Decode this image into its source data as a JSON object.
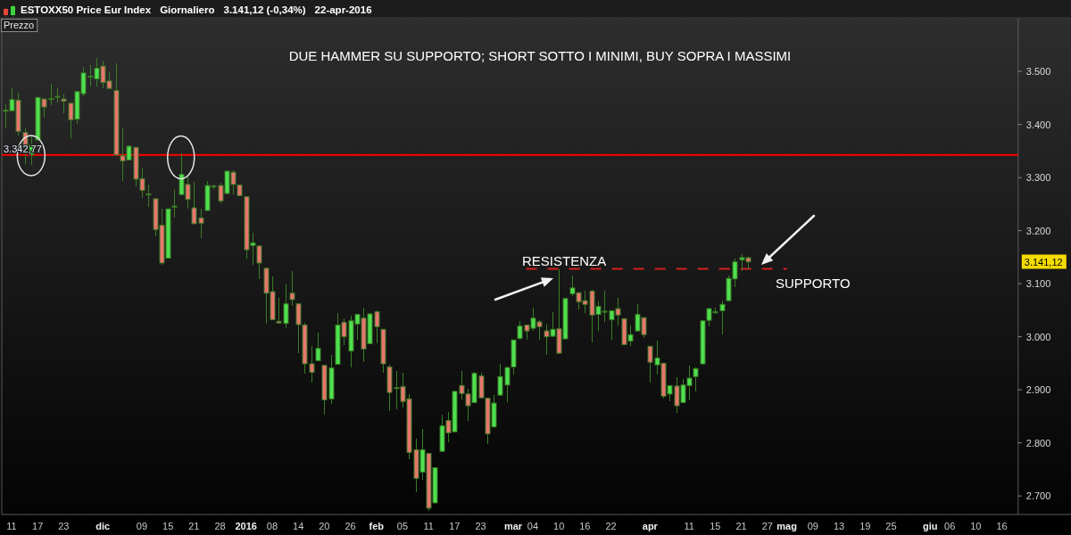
{
  "chart_data": {
    "type": "candlestick",
    "title": "ESTOXX50 Price Eur Index",
    "subtitle": "Giornaliero",
    "ylabel": "Prezzo",
    "annotations": [
      "DUE HAMMER SU SUPPORTO; SHORT SOTTO I MINIMI, BUY SOPRA I MASSIMI",
      "3.141,12 (-0,34%)",
      "22-apr-2016",
      "RESISTENZA",
      "SUPPORTO",
      "3.141,12"
    ],
    "categories": [
      null,
      "11",
      null,
      null,
      null,
      "17",
      null,
      null,
      null,
      "23",
      null,
      null,
      null,
      null,
      null,
      "dic",
      null,
      null,
      null,
      null,
      null,
      "09",
      null,
      null,
      null,
      "15",
      null,
      null,
      null,
      "21",
      null,
      null,
      null,
      "28",
      null,
      null,
      null,
      "2016",
      null,
      null,
      null,
      "08",
      null,
      null,
      null,
      "14",
      null,
      null,
      null,
      "20",
      null,
      null,
      null,
      "26",
      null,
      null,
      null,
      "feb",
      null,
      null,
      null,
      "05",
      null,
      null,
      null,
      "11",
      null,
      null,
      null,
      "17",
      null,
      null,
      null,
      "23",
      null,
      null,
      null,
      null,
      "mar",
      null,
      null,
      "04",
      null,
      null,
      null,
      "10",
      null,
      null,
      null,
      "16",
      null,
      null,
      null,
      "22",
      null,
      null,
      null,
      null,
      null,
      "apr",
      null,
      null,
      null,
      null,
      null,
      "11",
      null,
      null,
      null,
      "15",
      null,
      null,
      null,
      "21",
      null,
      null,
      null,
      "27",
      null,
      null,
      "mag",
      null,
      null,
      null,
      "09",
      null,
      null,
      null,
      "13",
      null,
      null,
      null,
      "19",
      null,
      null,
      null,
      "25",
      null,
      null,
      null,
      null,
      null,
      "giu",
      null,
      null,
      "06",
      null,
      null,
      null,
      "10",
      null,
      null,
      null,
      "16",
      null,
      null
    ],
    "ohlc": [
      [
        3425,
        3438,
        3394,
        3427
      ],
      [
        3426,
        3469,
        3424,
        3447
      ],
      [
        3446,
        3460,
        3380,
        3387
      ],
      [
        3385,
        3392,
        3326,
        3360
      ],
      [
        3343,
        3377,
        3324,
        3361
      ],
      [
        3371,
        3452,
        3369,
        3451
      ],
      [
        3448,
        3449,
        3413,
        3433
      ],
      [
        3449,
        3476,
        3437,
        3448
      ],
      [
        3452,
        3469,
        3441,
        3453
      ],
      [
        3448,
        3458,
        3422,
        3444
      ],
      [
        3440,
        3441,
        3374,
        3409
      ],
      [
        3410,
        3463,
        3401,
        3462
      ],
      [
        3458,
        3508,
        3453,
        3497
      ],
      [
        3490,
        3512,
        3471,
        3491
      ],
      [
        3486,
        3525,
        3471,
        3506
      ],
      [
        3510,
        3520,
        3469,
        3479
      ],
      [
        3482,
        3500,
        3467,
        3468
      ],
      [
        3464,
        3515,
        3340,
        3343
      ],
      [
        3341,
        3394,
        3294,
        3331
      ],
      [
        3333,
        3360,
        3332,
        3359
      ],
      [
        3357,
        3358,
        3283,
        3297
      ],
      [
        3298,
        3317,
        3262,
        3276
      ],
      [
        3268,
        3287,
        3245,
        3269
      ],
      [
        3260,
        3261,
        3189,
        3202
      ],
      [
        3210,
        3242,
        3136,
        3139
      ],
      [
        3148,
        3242,
        3147,
        3241
      ],
      [
        3245,
        3277,
        3225,
        3246
      ],
      [
        3268,
        3345,
        3267,
        3306
      ],
      [
        3287,
        3304,
        3242,
        3259
      ],
      [
        3243,
        3292,
        3212,
        3213
      ],
      [
        3224,
        3242,
        3186,
        3214
      ],
      [
        3238,
        3293,
        3237,
        3285
      ],
      [
        3283,
        3287,
        3279,
        3284
      ],
      [
        3285,
        3290,
        3251,
        3256
      ],
      [
        3270,
        3313,
        3269,
        3312
      ],
      [
        3310,
        3314,
        3268,
        3287
      ],
      [
        3286,
        3287,
        3265,
        3266
      ],
      [
        3264,
        3265,
        3147,
        3164
      ],
      [
        3172,
        3196,
        3135,
        3177
      ],
      [
        3171,
        3173,
        3109,
        3139
      ],
      [
        3129,
        3130,
        3025,
        3082
      ],
      [
        3085,
        3113,
        3031,
        3032
      ],
      [
        3029,
        3073,
        3025,
        3026
      ],
      [
        3025,
        3098,
        3017,
        3062
      ],
      [
        3082,
        3123,
        3059,
        3070
      ],
      [
        3062,
        3063,
        2969,
        3023
      ],
      [
        3022,
        3027,
        2930,
        2949
      ],
      [
        2949,
        2982,
        2913,
        2933
      ],
      [
        2955,
        3008,
        2954,
        2978
      ],
      [
        2946,
        2947,
        2853,
        2881
      ],
      [
        2883,
        2965,
        2873,
        2941
      ],
      [
        2948,
        3045,
        2947,
        3022
      ],
      [
        3027,
        3035,
        2984,
        3000
      ],
      [
        2973,
        3040,
        2943,
        3030
      ],
      [
        3024,
        3043,
        2994,
        3042
      ],
      [
        3035,
        3055,
        2952,
        2977
      ],
      [
        2987,
        3044,
        2986,
        3043
      ],
      [
        3047,
        3050,
        2987,
        3019
      ],
      [
        3014,
        3015,
        2932,
        2949
      ],
      [
        2943,
        2947,
        2860,
        2895
      ],
      [
        2904,
        2935,
        2864,
        2903
      ],
      [
        2906,
        2932,
        2867,
        2878
      ],
      [
        2883,
        2892,
        2769,
        2782
      ],
      [
        2787,
        2807,
        2707,
        2733
      ],
      [
        2745,
        2826,
        2731,
        2787
      ],
      [
        2780,
        2781,
        2672,
        2677
      ],
      [
        2687,
        2754,
        2686,
        2753
      ],
      [
        2784,
        2853,
        2783,
        2832
      ],
      [
        2842,
        2858,
        2801,
        2819
      ],
      [
        2821,
        2898,
        2820,
        2897
      ],
      [
        2908,
        2935,
        2881,
        2893
      ],
      [
        2892,
        2902,
        2842,
        2870
      ],
      [
        2876,
        2934,
        2875,
        2931
      ],
      [
        2926,
        2933,
        2884,
        2885
      ],
      [
        2884,
        2885,
        2798,
        2817
      ],
      [
        2830,
        2890,
        2829,
        2875
      ],
      [
        2890,
        2949,
        2889,
        2925
      ],
      [
        2909,
        2944,
        2876,
        2942
      ],
      [
        2943,
        2995,
        2928,
        2994
      ],
      [
        2997,
        3029,
        2994,
        3020
      ],
      [
        3022,
        3023,
        2995,
        3011
      ],
      [
        3016,
        3055,
        3011,
        3035
      ],
      [
        3028,
        3032,
        2995,
        3019
      ],
      [
        3011,
        3023,
        2966,
        3000
      ],
      [
        3001,
        3047,
        3000,
        3014
      ],
      [
        3015,
        3127,
        2968,
        2969
      ],
      [
        2996,
        3073,
        2995,
        3072
      ],
      [
        3081,
        3115,
        3077,
        3092
      ],
      [
        3083,
        3084,
        3052,
        3066
      ],
      [
        3068,
        3086,
        3044,
        3061
      ],
      [
        3086,
        3089,
        2989,
        3041
      ],
      [
        3042,
        3066,
        3011,
        3057
      ],
      [
        3048,
        3086,
        3028,
        3047
      ],
      [
        3032,
        3050,
        2995,
        3049
      ],
      [
        3053,
        3074,
        3022,
        3041
      ],
      [
        3034,
        3035,
        2984,
        2985
      ],
      [
        2992,
        3022,
        2982,
        3004
      ],
      [
        3011,
        3061,
        3010,
        3042
      ],
      [
        3036,
        3037,
        2998,
        3004
      ],
      [
        2982,
        2983,
        2914,
        2952
      ],
      [
        2947,
        2993,
        2929,
        2960
      ],
      [
        2950,
        2951,
        2884,
        2888
      ],
      [
        2892,
        2909,
        2878,
        2908
      ],
      [
        2907,
        2924,
        2857,
        2870
      ],
      [
        2876,
        2920,
        2875,
        2909
      ],
      [
        2908,
        2946,
        2880,
        2922
      ],
      [
        2925,
        2942,
        2897,
        2940
      ],
      [
        2949,
        3031,
        2948,
        3030
      ],
      [
        3031,
        3055,
        3020,
        3053
      ],
      [
        3046,
        3055,
        3043,
        3047
      ],
      [
        3049,
        3069,
        3004,
        3061
      ],
      [
        3068,
        3116,
        3067,
        3110
      ],
      [
        3109,
        3147,
        3094,
        3141
      ],
      [
        3145,
        3155,
        3124,
        3149
      ],
      [
        3149,
        3151,
        3127,
        3141.12
      ],
      null,
      null,
      null,
      null,
      null,
      null,
      null,
      null,
      null,
      null,
      null,
      null,
      null,
      null,
      null,
      null,
      null,
      null,
      null,
      null,
      null,
      null,
      null,
      null,
      null,
      null,
      null,
      null,
      null,
      null,
      null,
      null,
      null,
      null,
      null,
      null,
      null,
      null,
      null,
      null,
      null
    ],
    "colors": [
      "#4fe04f",
      "#4fe04f",
      "#e8766e",
      "#e8766e",
      "#4fe04f",
      "#4fe04f",
      "#e8766e",
      "#e8766e",
      "#4fe04f",
      "#e8766e",
      "#e8766e",
      "#4fe04f",
      "#4fe04f",
      "#4fe04f",
      "#4fe04f",
      "#e8766e",
      "#e8766e",
      "#e8766e",
      "#e8766e",
      "#4fe04f",
      "#e8766e",
      "#e8766e",
      "#4fe04f",
      "#e8766e",
      "#e8766e",
      "#4fe04f",
      "#4fe04f",
      "#4fe04f",
      "#e8766e",
      "#e8766e",
      "#e8766e",
      "#4fe04f",
      "#4fe04f",
      "#e8766e",
      "#4fe04f",
      "#e8766e",
      "#e8766e",
      "#e8766e",
      "#4fe04f",
      "#e8766e",
      "#e8766e",
      "#e8766e",
      "#e8766e",
      "#4fe04f",
      "#e8766e",
      "#e8766e",
      "#e8766e",
      "#e8766e",
      "#4fe04f",
      "#e8766e",
      "#4fe04f",
      "#4fe04f",
      "#e8766e",
      "#4fe04f",
      "#4fe04f",
      "#e8766e",
      "#4fe04f",
      "#e8766e",
      "#e8766e",
      "#e8766e",
      "#e8766e",
      "#e8766e",
      "#e8766e",
      "#e8766e",
      "#4fe04f",
      "#e8766e",
      "#4fe04f",
      "#4fe04f",
      "#e8766e",
      "#4fe04f",
      "#e8766e",
      "#e8766e",
      "#4fe04f",
      "#e8766e",
      "#e8766e",
      "#4fe04f",
      "#4fe04f",
      "#4fe04f",
      "#4fe04f",
      "#4fe04f",
      "#e8766e",
      "#4fe04f",
      "#e8766e",
      "#e8766e",
      "#4fe04f",
      "#e8766e",
      "#4fe04f",
      "#4fe04f",
      "#e8766e",
      "#e8766e",
      "#e8766e",
      "#4fe04f",
      "#e8766e",
      "#4fe04f",
      "#e8766e",
      "#e8766e",
      "#4fe04f",
      "#4fe04f",
      "#e8766e",
      "#e8766e",
      "#4fe04f",
      "#e8766e",
      "#4fe04f",
      "#e8766e",
      "#4fe04f",
      "#4fe04f",
      "#4fe04f",
      "#4fe04f",
      "#4fe04f",
      "#4fe04f",
      "#4fe04f",
      "#4fe04f",
      "#4fe04f",
      "#4fe04f",
      "#e8766e",
      null,
      null,
      null,
      null,
      null,
      null,
      null,
      null,
      null,
      null,
      null,
      null,
      null,
      null,
      null,
      null,
      null,
      null,
      null,
      null,
      null,
      null,
      null,
      null,
      null,
      null,
      null,
      null,
      null,
      null,
      null,
      null,
      null,
      null,
      null,
      null,
      null,
      null,
      null,
      null,
      null
    ],
    "series": [
      {
        "type": "line",
        "color": "#d42020",
        "line_style": "dashed",
        "values": [
          null,
          null,
          null,
          null,
          null,
          null,
          null,
          null,
          null,
          null,
          null,
          null,
          null,
          null,
          null,
          null,
          null,
          null,
          null,
          null,
          null,
          null,
          null,
          null,
          null,
          null,
          null,
          null,
          null,
          null,
          null,
          null,
          null,
          null,
          null,
          null,
          null,
          null,
          null,
          null,
          null,
          null,
          null,
          null,
          null,
          null,
          null,
          null,
          null,
          null,
          null,
          null,
          null,
          null,
          null,
          null,
          null,
          null,
          null,
          null,
          null,
          null,
          null,
          null,
          null,
          null,
          null,
          null,
          null,
          null,
          null,
          null,
          null,
          null,
          null,
          null,
          null,
          null,
          null,
          null,
          3128,
          3128,
          3128,
          3128,
          3128,
          3128,
          3128,
          3128,
          3128,
          3128,
          3128,
          3128,
          3128,
          3128,
          3128,
          3128,
          3128,
          3128,
          3128,
          3128,
          3128,
          3128,
          3128,
          3128,
          3128,
          3128,
          3128,
          3128,
          3128,
          3128,
          3128,
          3128,
          3128,
          3128,
          3128,
          3128,
          3128,
          3128,
          3128,
          3128,
          3128,
          null,
          null,
          null,
          null,
          null,
          null,
          null,
          null,
          null,
          null,
          null,
          null,
          null,
          null,
          null,
          null,
          null,
          null,
          null,
          null,
          null,
          null,
          null,
          null,
          null,
          null,
          null,
          null,
          null,
          null,
          null,
          null,
          null,
          null,
          null
        ]
      }
    ],
    "ref_lines": [
      {
        "axis": "y",
        "value": 3342.77,
        "label": "3.342,77",
        "color": "#ff0000"
      }
    ],
    "ylim": [
      2665,
      3601
    ],
    "yticks": [
      {
        "value": 2700,
        "label": "2.700"
      },
      {
        "value": 2800,
        "label": "2.800"
      },
      {
        "value": 2900,
        "label": "2.900"
      },
      {
        "value": 3000,
        "label": "3.000"
      },
      {
        "value": 3100,
        "label": "3.100"
      },
      {
        "value": 3200,
        "label": "3.200"
      },
      {
        "value": 3300,
        "label": "3.300"
      },
      {
        "value": 3400,
        "label": "3.400"
      },
      {
        "value": 3500,
        "label": "3.500"
      }
    ]
  }
}
